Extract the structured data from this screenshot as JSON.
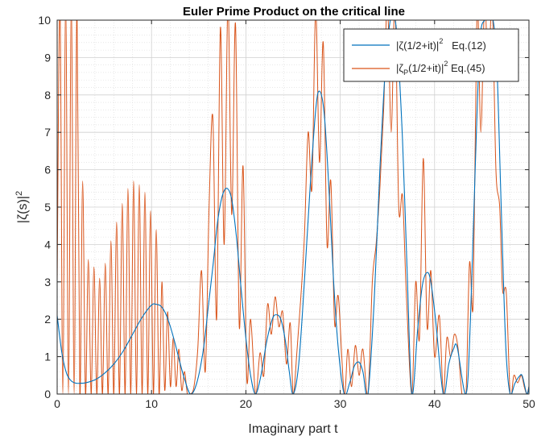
{
  "chart_data": {
    "type": "line",
    "title": "Euler Prime Product on the critical line",
    "xlabel": "Imaginary part t",
    "ylabel": {
      "base": "|ζ(s)|",
      "sup": "2"
    },
    "xlim": [
      0,
      50
    ],
    "ylim": [
      0,
      10
    ],
    "xticks": [
      "0",
      "10",
      "20",
      "30",
      "40",
      "50"
    ],
    "yticks": [
      "0",
      "1",
      "2",
      "3",
      "4",
      "5",
      "6",
      "7",
      "8",
      "9",
      "10"
    ],
    "grid": true,
    "minor_grid": true,
    "legend_position": "top-right",
    "series": [
      {
        "name": "|ζ(1/2+it)|^2   Eq.(12)",
        "legend": {
          "pre": "|ζ(1/2+it)|",
          "sup": "2",
          "post": "   Eq.(12)"
        },
        "color": "#0072BD",
        "x": [
          0,
          0.5,
          1,
          1.5,
          2,
          2.5,
          3,
          4,
          5,
          6,
          7,
          8,
          9,
          10,
          10.5,
          11,
          11.5,
          12,
          12.5,
          13,
          13.5,
          14.13,
          14.8,
          15.5,
          16,
          16.5,
          17,
          17.5,
          18,
          18.5,
          19,
          19.5,
          20,
          20.5,
          21.02,
          21.6,
          22.2,
          22.8,
          23.2,
          23.7,
          24.2,
          24.6,
          25.01,
          25.6,
          26.2,
          26.8,
          27.4,
          27.8,
          28.3,
          28.8,
          29.3,
          29.8,
          30.42,
          31,
          31.5,
          32,
          32.4,
          32.94,
          33.6,
          34.2,
          34.8,
          35.3,
          35.6,
          36,
          36.6,
          37.1,
          37.59,
          38.2,
          38.7,
          39.2,
          39.6,
          40.1,
          40.92,
          41.5,
          42,
          42.4,
          43.33,
          43.8,
          44.3,
          44.8,
          45.3,
          45.7,
          46.2,
          46.6,
          47.0,
          47.3,
          47.6,
          48.01,
          48.5,
          49.0,
          49.3,
          49.77,
          50
        ],
        "y": [
          2.1,
          1.1,
          0.55,
          0.35,
          0.29,
          0.29,
          0.3,
          0.38,
          0.55,
          0.8,
          1.15,
          1.6,
          2.05,
          2.38,
          2.4,
          2.35,
          2.15,
          1.8,
          1.35,
          0.85,
          0.4,
          0.0,
          0.3,
          1.2,
          2.3,
          3.4,
          4.6,
          5.3,
          5.5,
          5.2,
          4.2,
          2.8,
          1.5,
          0.5,
          0.0,
          0.5,
          1.4,
          2.0,
          2.12,
          2.0,
          1.4,
          0.6,
          0.0,
          0.8,
          3.0,
          5.5,
          7.6,
          8.1,
          7.5,
          5.5,
          3.0,
          1.2,
          0.0,
          0.3,
          0.75,
          0.85,
          0.6,
          0.0,
          2.5,
          6.0,
          8.8,
          10.0,
          10.1,
          9.6,
          6.8,
          3.2,
          0.0,
          1.7,
          2.9,
          3.25,
          3.0,
          2.0,
          0.0,
          0.8,
          1.2,
          1.25,
          0.0,
          2.0,
          6.0,
          9.4,
          10.0,
          10.0,
          10.0,
          8.8,
          5.5,
          3.0,
          1.0,
          0.0,
          0.28,
          0.48,
          0.48,
          0.0,
          0.2
        ]
      },
      {
        "name": "|ζP(1/2+it)|^2 Eq.(45)",
        "legend": {
          "pre": "|ζ",
          "sub": "P",
          "mid": "(1/2+it)|",
          "sup": "2",
          "post": " Eq.(45)"
        },
        "color": "#D95319",
        "x": [
          0,
          0.3,
          0.6,
          0.9,
          1.2,
          1.5,
          1.8,
          2.1,
          2.4,
          2.7,
          3.0,
          3.3,
          3.6,
          3.9,
          4.2,
          4.5,
          4.8,
          5.1,
          5.4,
          5.7,
          6.0,
          6.3,
          6.6,
          6.9,
          7.2,
          7.5,
          7.8,
          8.1,
          8.4,
          8.7,
          9.0,
          9.3,
          9.6,
          9.9,
          10.2,
          10.5,
          10.8,
          11.1,
          11.4,
          11.7,
          12.0,
          12.3,
          12.6,
          12.9,
          13.2,
          13.5,
          13.8,
          14.13,
          14.5,
          14.9,
          15.3,
          15.7,
          16.1,
          16.5,
          16.9,
          17.3,
          17.7,
          18.1,
          18.5,
          18.9,
          19.3,
          19.7,
          20.1,
          20.5,
          21.02,
          21.5,
          21.9,
          22.3,
          22.7,
          23.1,
          23.5,
          23.9,
          24.3,
          24.7,
          25.01,
          25.4,
          25.8,
          26.2,
          26.6,
          27.0,
          27.4,
          27.8,
          28.2,
          28.6,
          29.0,
          29.4,
          29.8,
          30.42,
          30.8,
          31.2,
          31.6,
          32.0,
          32.4,
          32.94,
          33.4,
          33.8,
          34.2,
          34.6,
          35.0,
          35.4,
          35.8,
          36.2,
          36.6,
          37.0,
          37.59,
          38.0,
          38.4,
          38.8,
          39.2,
          39.6,
          40.0,
          40.5,
          40.92,
          41.3,
          41.7,
          42.1,
          42.5,
          42.9,
          43.33,
          43.7,
          44.1,
          44.5,
          44.9,
          45.3,
          45.7,
          46.1,
          46.5,
          46.9,
          47.2,
          47.6,
          48.01,
          48.4,
          48.8,
          49.2,
          49.5,
          49.77,
          50
        ],
        "y": [
          3.0,
          10.5,
          0.0,
          10.5,
          0.0,
          10.5,
          0.0,
          10.5,
          0.0,
          5.7,
          0.0,
          3.6,
          0.0,
          3.4,
          0.0,
          3.1,
          0.0,
          3.5,
          0.0,
          4.1,
          0.0,
          4.6,
          0.0,
          5.1,
          0.0,
          5.5,
          0.0,
          5.7,
          0.0,
          5.6,
          0.0,
          5.4,
          0.0,
          4.9,
          0.0,
          4.4,
          0.0,
          3.0,
          0.1,
          2.2,
          0.2,
          1.5,
          0.2,
          1.2,
          0.1,
          0.6,
          0.0,
          0.0,
          0.2,
          1.2,
          3.3,
          0.6,
          5.0,
          7.4,
          2.0,
          9.8,
          4.0,
          10.5,
          4.8,
          9.9,
          1.8,
          6.1,
          0.4,
          2.0,
          0.0,
          1.1,
          0.5,
          2.4,
          1.6,
          2.6,
          1.8,
          2.2,
          0.8,
          1.9,
          0.0,
          1.1,
          2.5,
          4.2,
          7.0,
          5.5,
          10.3,
          6.2,
          9.4,
          4.0,
          5.7,
          1.9,
          2.6,
          0.0,
          1.2,
          0.2,
          1.3,
          0.5,
          1.2,
          0.0,
          3.0,
          4.0,
          5.5,
          7.6,
          10.5,
          7.0,
          10.5,
          5.0,
          5.3,
          2.7,
          0.0,
          3.0,
          1.5,
          6.3,
          1.8,
          3.3,
          1.0,
          2.1,
          0.0,
          1.5,
          1.0,
          1.6,
          1.2,
          0.0,
          0.0,
          3.5,
          2.5,
          10.5,
          7.0,
          10.5,
          8.5,
          10.5,
          6.0,
          5.0,
          2.8,
          2.7,
          0.0,
          0.5,
          0.3,
          0.5,
          0.2,
          0.0,
          0.2
        ]
      }
    ]
  }
}
